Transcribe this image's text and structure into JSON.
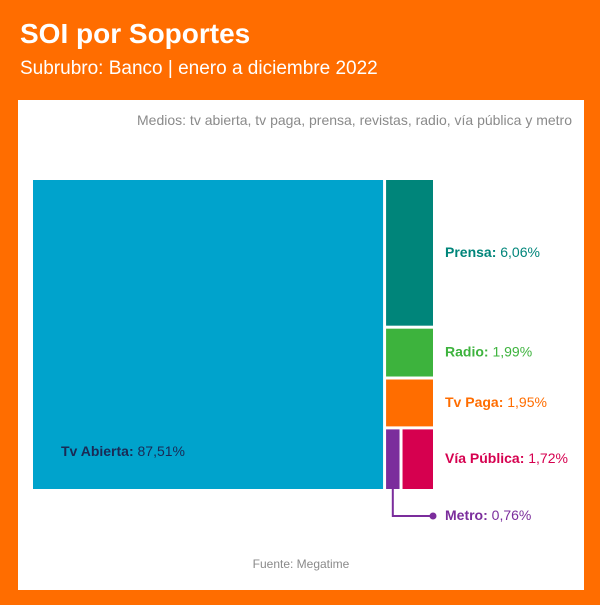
{
  "header": {
    "title": "SOI por Soportes",
    "subtitle": "Subrubro: Banco | enero a diciembre 2022"
  },
  "note": "Medios: tv abierta, tv paga, prensa, revistas, radio, vía pública y metro",
  "source": "Fuente: Megatime",
  "colors": {
    "background": "#ff6d00",
    "card": "#ffffff"
  },
  "chart_data": {
    "type": "treemap",
    "title": "SOI por Soportes",
    "items": [
      {
        "name": "Tv Abierta",
        "value": 87.51,
        "value_label": "87,51%",
        "color": "#00a3cc",
        "label_color": "#1a2a55"
      },
      {
        "name": "Prensa",
        "value": 6.06,
        "value_label": "6,06%",
        "color": "#00857a",
        "label_color": "#00857a"
      },
      {
        "name": "Radio",
        "value": 1.99,
        "value_label": "1,99%",
        "color": "#3db33d",
        "label_color": "#3db33d"
      },
      {
        "name": "Tv Paga",
        "value": 1.95,
        "value_label": "1,95%",
        "color": "#ff6d00",
        "label_color": "#ff6d00"
      },
      {
        "name": "Vía Pública",
        "value": 1.72,
        "value_label": "1,72%",
        "color": "#d6004f",
        "label_color": "#d6004f"
      },
      {
        "name": "Metro",
        "value": 0.76,
        "value_label": "0,76%",
        "color": "#7b2d9c",
        "label_color": "#7b2d9c"
      }
    ]
  }
}
